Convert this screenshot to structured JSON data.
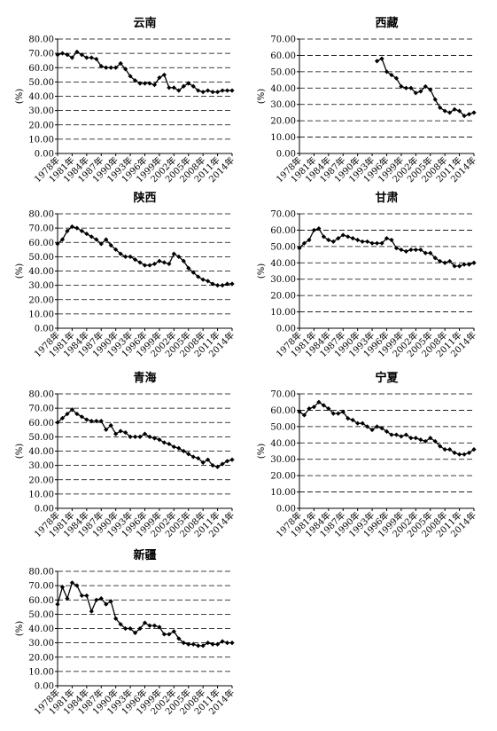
{
  "chart_data": [
    {
      "type": "line",
      "title": "云南",
      "ylabel": "(%)",
      "color": "#000000",
      "grid": true,
      "x": [
        1978,
        1979,
        1980,
        1981,
        1982,
        1983,
        1984,
        1985,
        1986,
        1987,
        1988,
        1989,
        1990,
        1991,
        1992,
        1993,
        1994,
        1995,
        1996,
        1997,
        1998,
        1999,
        2000,
        2001,
        2002,
        2003,
        2004,
        2005,
        2006,
        2007,
        2008,
        2009,
        2010,
        2011,
        2012,
        2013,
        2014
      ],
      "values": [
        69,
        70,
        69,
        67,
        71,
        69,
        67,
        67,
        66,
        61,
        60,
        60,
        60,
        63,
        59,
        54,
        51,
        49,
        49,
        49,
        48,
        53,
        55,
        46,
        46,
        44,
        47,
        49,
        47,
        44,
        43,
        44,
        43,
        43,
        44,
        44,
        44
      ],
      "xlim": [
        1978,
        2014
      ],
      "xticks": [
        {
          "value": 1978,
          "label": "1978年"
        },
        {
          "value": 1981,
          "label": "1981年"
        },
        {
          "value": 1984,
          "label": "1984年"
        },
        {
          "value": 1987,
          "label": "1987年"
        },
        {
          "value": 1990,
          "label": "1990年"
        },
        {
          "value": 1993,
          "label": "1993年"
        },
        {
          "value": 1996,
          "label": "1996年"
        },
        {
          "value": 1999,
          "label": "1999年"
        },
        {
          "value": 2002,
          "label": "2002年"
        },
        {
          "value": 2005,
          "label": "2005年"
        },
        {
          "value": 2008,
          "label": "2008年"
        },
        {
          "value": 2011,
          "label": "2011年"
        },
        {
          "value": 2014,
          "label": "2014年"
        }
      ],
      "ylim": [
        0,
        80
      ],
      "yticks": [
        {
          "value": 0,
          "label": "0.00"
        },
        {
          "value": 10,
          "label": "10.00"
        },
        {
          "value": 20,
          "label": "20.00"
        },
        {
          "value": 30,
          "label": "30.00"
        },
        {
          "value": 40,
          "label": "40.00"
        },
        {
          "value": 50,
          "label": "50.00"
        },
        {
          "value": 60,
          "label": "60.00"
        },
        {
          "value": 70,
          "label": "70.00"
        },
        {
          "value": 80,
          "label": "80.00"
        }
      ]
    },
    {
      "type": "line",
      "title": "西藏",
      "ylabel": "(%)",
      "color": "#000000",
      "grid": true,
      "x": [
        1978,
        1979,
        1980,
        1981,
        1982,
        1983,
        1984,
        1985,
        1986,
        1987,
        1988,
        1989,
        1990,
        1991,
        1992,
        1993,
        1994,
        1995,
        1996,
        1997,
        1998,
        1999,
        2000,
        2001,
        2002,
        2003,
        2004,
        2005,
        2006,
        2007,
        2008,
        2009,
        2010,
        2011,
        2012,
        2013,
        2014
      ],
      "values": [
        null,
        null,
        null,
        null,
        null,
        null,
        null,
        null,
        null,
        null,
        null,
        null,
        null,
        null,
        null,
        null,
        56.5,
        58,
        50,
        48,
        46,
        41,
        40,
        40,
        37,
        38,
        41,
        39,
        33,
        28,
        26,
        25,
        27,
        26,
        23,
        24,
        25
      ],
      "xlim": [
        1978,
        2014
      ],
      "xticks": [
        {
          "value": 1978,
          "label": "1978年"
        },
        {
          "value": 1981,
          "label": "1981年"
        },
        {
          "value": 1984,
          "label": "1984年"
        },
        {
          "value": 1987,
          "label": "1987年"
        },
        {
          "value": 1990,
          "label": "1990年"
        },
        {
          "value": 1993,
          "label": "1993年"
        },
        {
          "value": 1996,
          "label": "1996年"
        },
        {
          "value": 1999,
          "label": "1999年"
        },
        {
          "value": 2002,
          "label": "2002年"
        },
        {
          "value": 2005,
          "label": "2005年"
        },
        {
          "value": 2008,
          "label": "2008年"
        },
        {
          "value": 2011,
          "label": "2011年"
        },
        {
          "value": 2014,
          "label": "2014年"
        }
      ],
      "ylim": [
        0,
        70
      ],
      "yticks": [
        {
          "value": 0,
          "label": "0.00"
        },
        {
          "value": 10,
          "label": "10.00"
        },
        {
          "value": 20,
          "label": "20.00"
        },
        {
          "value": 30,
          "label": "30.00"
        },
        {
          "value": 40,
          "label": "40.00"
        },
        {
          "value": 50,
          "label": "50.00"
        },
        {
          "value": 60,
          "label": "60.00"
        },
        {
          "value": 70,
          "label": "70.00"
        }
      ]
    },
    {
      "type": "line",
      "title": "陕西",
      "ylabel": "(%)",
      "color": "#000000",
      "grid": true,
      "x": [
        1978,
        1979,
        1980,
        1981,
        1982,
        1983,
        1984,
        1985,
        1986,
        1987,
        1988,
        1989,
        1990,
        1991,
        1992,
        1993,
        1994,
        1995,
        1996,
        1997,
        1998,
        1999,
        2000,
        2001,
        2002,
        2003,
        2004,
        2005,
        2006,
        2007,
        2008,
        2009,
        2010,
        2011,
        2012,
        2013,
        2014
      ],
      "values": [
        59,
        62,
        68,
        71,
        70,
        68,
        66,
        64,
        62,
        59,
        62,
        58,
        55,
        52,
        50,
        50,
        48,
        46,
        44,
        44,
        45,
        47,
        46,
        45,
        52,
        50,
        47,
        42,
        39,
        36,
        34,
        33,
        31,
        30,
        30,
        31,
        31
      ],
      "xlim": [
        1978,
        2014
      ],
      "xticks": [
        {
          "value": 1978,
          "label": "1978年"
        },
        {
          "value": 1981,
          "label": "1981年"
        },
        {
          "value": 1984,
          "label": "1984年"
        },
        {
          "value": 1987,
          "label": "1987年"
        },
        {
          "value": 1990,
          "label": "1990年"
        },
        {
          "value": 1993,
          "label": "1993年"
        },
        {
          "value": 1996,
          "label": "1996年"
        },
        {
          "value": 1999,
          "label": "1999年"
        },
        {
          "value": 2002,
          "label": "2002年"
        },
        {
          "value": 2005,
          "label": "2005年"
        },
        {
          "value": 2008,
          "label": "2008年"
        },
        {
          "value": 2011,
          "label": "2011年"
        },
        {
          "value": 2014,
          "label": "2014年"
        }
      ],
      "ylim": [
        0,
        80
      ],
      "yticks": [
        {
          "value": 0,
          "label": "0.00"
        },
        {
          "value": 10,
          "label": "10.00"
        },
        {
          "value": 20,
          "label": "20.00"
        },
        {
          "value": 30,
          "label": "30.00"
        },
        {
          "value": 40,
          "label": "40.00"
        },
        {
          "value": 50,
          "label": "50.00"
        },
        {
          "value": 60,
          "label": "60.00"
        },
        {
          "value": 70,
          "label": "70.00"
        },
        {
          "value": 80,
          "label": "80.00"
        }
      ]
    },
    {
      "type": "line",
      "title": "甘肃",
      "ylabel": "(%)",
      "color": "#000000",
      "grid": true,
      "x": [
        1978,
        1979,
        1980,
        1981,
        1982,
        1983,
        1984,
        1985,
        1986,
        1987,
        1988,
        1989,
        1990,
        1991,
        1992,
        1993,
        1994,
        1995,
        1996,
        1997,
        1998,
        1999,
        2000,
        2001,
        2002,
        2003,
        2004,
        2005,
        2006,
        2007,
        2008,
        2009,
        2010,
        2011,
        2012,
        2013,
        2014
      ],
      "values": [
        49,
        52,
        54,
        60,
        61,
        56,
        54,
        53,
        55,
        57,
        56,
        55,
        54,
        53,
        53,
        52,
        52,
        52,
        55,
        54,
        49,
        48,
        47,
        48,
        48,
        48,
        46,
        46,
        43,
        41,
        40,
        41,
        38,
        38,
        39,
        39,
        40
      ],
      "xlim": [
        1978,
        2014
      ],
      "xticks": [
        {
          "value": 1978,
          "label": "1978年"
        },
        {
          "value": 1981,
          "label": "1981年"
        },
        {
          "value": 1984,
          "label": "1984年"
        },
        {
          "value": 1987,
          "label": "1987年"
        },
        {
          "value": 1990,
          "label": "1990年"
        },
        {
          "value": 1993,
          "label": "1993年"
        },
        {
          "value": 1996,
          "label": "1996年"
        },
        {
          "value": 1999,
          "label": "1999年"
        },
        {
          "value": 2002,
          "label": "2002年"
        },
        {
          "value": 2005,
          "label": "2005年"
        },
        {
          "value": 2008,
          "label": "2008年"
        },
        {
          "value": 2011,
          "label": "2011年"
        },
        {
          "value": 2014,
          "label": "2014年"
        }
      ],
      "ylim": [
        0,
        70
      ],
      "yticks": [
        {
          "value": 0,
          "label": "0.00"
        },
        {
          "value": 10,
          "label": "10.00"
        },
        {
          "value": 20,
          "label": "20.00"
        },
        {
          "value": 30,
          "label": "30.00"
        },
        {
          "value": 40,
          "label": "40.00"
        },
        {
          "value": 50,
          "label": "50.00"
        },
        {
          "value": 60,
          "label": "60.00"
        },
        {
          "value": 70,
          "label": "70.00"
        }
      ]
    },
    {
      "type": "line",
      "title": "青海",
      "ylabel": "(%)",
      "color": "#000000",
      "grid": true,
      "x": [
        1978,
        1979,
        1980,
        1981,
        1982,
        1983,
        1984,
        1985,
        1986,
        1987,
        1988,
        1989,
        1990,
        1991,
        1992,
        1993,
        1994,
        1995,
        1996,
        1997,
        1998,
        1999,
        2000,
        2001,
        2002,
        2003,
        2004,
        2005,
        2006,
        2007,
        2008,
        2009,
        2010,
        2011,
        2012,
        2013,
        2014
      ],
      "values": [
        60,
        63,
        66,
        69,
        66,
        64,
        62,
        61,
        61,
        61,
        55,
        58,
        52,
        54,
        53,
        50,
        50,
        50,
        52,
        50,
        49,
        48,
        46,
        45,
        43,
        42,
        40,
        38,
        36,
        35,
        32,
        34,
        30,
        29,
        31,
        33,
        34
      ],
      "xlim": [
        1978,
        2014
      ],
      "xticks": [
        {
          "value": 1978,
          "label": "1978年"
        },
        {
          "value": 1981,
          "label": "1981年"
        },
        {
          "value": 1984,
          "label": "1984年"
        },
        {
          "value": 1987,
          "label": "1987年"
        },
        {
          "value": 1990,
          "label": "1990年"
        },
        {
          "value": 1993,
          "label": "1993年"
        },
        {
          "value": 1996,
          "label": "1996年"
        },
        {
          "value": 1999,
          "label": "1999年"
        },
        {
          "value": 2002,
          "label": "2002年"
        },
        {
          "value": 2005,
          "label": "2005年"
        },
        {
          "value": 2008,
          "label": "2008年"
        },
        {
          "value": 2011,
          "label": "2011年"
        },
        {
          "value": 2014,
          "label": "2014年"
        }
      ],
      "ylim": [
        0,
        80
      ],
      "yticks": [
        {
          "value": 0,
          "label": "0.00"
        },
        {
          "value": 10,
          "label": "10.00"
        },
        {
          "value": 20,
          "label": "20.00"
        },
        {
          "value": 30,
          "label": "30.00"
        },
        {
          "value": 40,
          "label": "40.00"
        },
        {
          "value": 50,
          "label": "50.00"
        },
        {
          "value": 60,
          "label": "60.00"
        },
        {
          "value": 70,
          "label": "70.00"
        },
        {
          "value": 80,
          "label": "80.00"
        }
      ]
    },
    {
      "type": "line",
      "title": "宁夏",
      "ylabel": "(%)",
      "color": "#000000",
      "grid": true,
      "x": [
        1978,
        1979,
        1980,
        1981,
        1982,
        1983,
        1984,
        1985,
        1986,
        1987,
        1988,
        1989,
        1990,
        1991,
        1992,
        1993,
        1994,
        1995,
        1996,
        1997,
        1998,
        1999,
        2000,
        2001,
        2002,
        2003,
        2004,
        2005,
        2006,
        2007,
        2008,
        2009,
        2010,
        2011,
        2012,
        2013,
        2014
      ],
      "values": [
        59,
        57,
        61,
        62,
        65,
        63,
        61,
        58,
        58,
        59,
        55,
        54,
        52,
        52,
        50,
        48,
        50,
        49,
        47,
        45,
        45,
        44,
        45,
        43,
        43,
        42,
        41,
        43,
        41,
        38,
        36,
        36,
        34,
        33,
        33,
        34,
        36
      ],
      "xlim": [
        1978,
        2014
      ],
      "xticks": [
        {
          "value": 1978,
          "label": "1978年"
        },
        {
          "value": 1981,
          "label": "1981年"
        },
        {
          "value": 1984,
          "label": "1984年"
        },
        {
          "value": 1987,
          "label": "1987年"
        },
        {
          "value": 1990,
          "label": "1990年"
        },
        {
          "value": 1993,
          "label": "1993年"
        },
        {
          "value": 1996,
          "label": "1996年"
        },
        {
          "value": 1999,
          "label": "1999年"
        },
        {
          "value": 2002,
          "label": "2002年"
        },
        {
          "value": 2005,
          "label": "2005年"
        },
        {
          "value": 2008,
          "label": "2008年"
        },
        {
          "value": 2011,
          "label": "2011年"
        },
        {
          "value": 2014,
          "label": "2014年"
        }
      ],
      "ylim": [
        0,
        70
      ],
      "yticks": [
        {
          "value": 0,
          "label": "0.00"
        },
        {
          "value": 10,
          "label": "10.00"
        },
        {
          "value": 20,
          "label": "20.00"
        },
        {
          "value": 30,
          "label": "30.00"
        },
        {
          "value": 40,
          "label": "40.00"
        },
        {
          "value": 50,
          "label": "50.00"
        },
        {
          "value": 60,
          "label": "60.00"
        },
        {
          "value": 70,
          "label": "70.00"
        }
      ]
    },
    {
      "type": "line",
      "title": "新疆",
      "ylabel": "(%)",
      "color": "#000000",
      "grid": true,
      "x": [
        1978,
        1979,
        1980,
        1981,
        1982,
        1983,
        1984,
        1985,
        1986,
        1987,
        1988,
        1989,
        1990,
        1991,
        1992,
        1993,
        1994,
        1995,
        1996,
        1997,
        1998,
        1999,
        2000,
        2001,
        2002,
        2003,
        2004,
        2005,
        2006,
        2007,
        2008,
        2009,
        2010,
        2011,
        2012,
        2013,
        2014
      ],
      "values": [
        57,
        69,
        61,
        72,
        70,
        63,
        63,
        52,
        60,
        61,
        57,
        59,
        47,
        43,
        40,
        40,
        37,
        40,
        44,
        42,
        42,
        41,
        36,
        36,
        38,
        33,
        30,
        29,
        29,
        28,
        28,
        30,
        29,
        29,
        31,
        30,
        30
      ],
      "xlim": [
        1978,
        2014
      ],
      "xticks": [
        {
          "value": 1978,
          "label": "1978年"
        },
        {
          "value": 1981,
          "label": "1981年"
        },
        {
          "value": 1984,
          "label": "1984年"
        },
        {
          "value": 1987,
          "label": "1987年"
        },
        {
          "value": 1990,
          "label": "1990年"
        },
        {
          "value": 1993,
          "label": "1993年"
        },
        {
          "value": 1996,
          "label": "1996年"
        },
        {
          "value": 1999,
          "label": "1999年"
        },
        {
          "value": 2002,
          "label": "2002年"
        },
        {
          "value": 2005,
          "label": "2005年"
        },
        {
          "value": 2008,
          "label": "2008年"
        },
        {
          "value": 2011,
          "label": "2011年"
        },
        {
          "value": 2014,
          "label": "2014年"
        }
      ],
      "ylim": [
        0,
        80
      ],
      "yticks": [
        {
          "value": 0,
          "label": "0.00"
        },
        {
          "value": 10,
          "label": "10.00"
        },
        {
          "value": 20,
          "label": "20.00"
        },
        {
          "value": 30,
          "label": "30.00"
        },
        {
          "value": 40,
          "label": "40.00"
        },
        {
          "value": 50,
          "label": "50.00"
        },
        {
          "value": 60,
          "label": "60.00"
        },
        {
          "value": 70,
          "label": "70.00"
        },
        {
          "value": 80,
          "label": "80.00"
        }
      ]
    }
  ]
}
